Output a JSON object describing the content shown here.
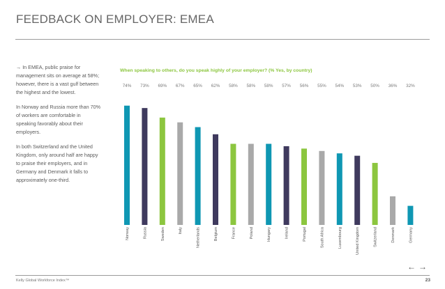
{
  "header": {
    "title": "FEEDBACK ON EMPLOYER: EMEA"
  },
  "sidebar": {
    "paragraphs": [
      "In EMEA, public praise for management sits on average at 58%; however, there is a vast gulf between the highest and the lowest.",
      "In Norway and Russia more than 70% of workers are comfortable in speaking favorably about their employers.",
      "In both Switzerland and the United Kingdom, only around half are happy to praise their employers, and in Germany and Denmark it falls to approximately one-third."
    ]
  },
  "footer": {
    "left": "Kelly Global Workforce Index™",
    "page": "23"
  },
  "nav": {
    "prev": "←",
    "next": "→"
  },
  "colors": {
    "teal": "#0f97b3",
    "navy": "#3f3a5e",
    "green": "#8cc63f",
    "grey": "#a9a9a9"
  },
  "chart_data": {
    "type": "bar",
    "title": "When speaking to others, do you speak highly of your employer? (% Yes, by country)",
    "categories": [
      "Norway",
      "Russia",
      "Sweden",
      "Italy",
      "Netherlands",
      "Belgium",
      "France",
      "Poland",
      "Hungary",
      "Ireland",
      "Portugal",
      "South Africa",
      "Luxembourg",
      "United Kingdom",
      "Switzerland",
      "Denmark",
      "Germany"
    ],
    "values": [
      74,
      73,
      69,
      67,
      65,
      62,
      58,
      58,
      58,
      57,
      56,
      55,
      54,
      53,
      50,
      36,
      32
    ],
    "value_labels": [
      "74%",
      "73%",
      "69%",
      "67%",
      "65%",
      "62%",
      "58%",
      "58%",
      "58%",
      "57%",
      "56%",
      "55%",
      "54%",
      "53%",
      "50%",
      "36%",
      "32%"
    ],
    "bar_colors": [
      "teal",
      "navy",
      "green",
      "grey",
      "teal",
      "navy",
      "green",
      "grey",
      "teal",
      "navy",
      "green",
      "grey",
      "teal",
      "navy",
      "green",
      "grey",
      "teal"
    ],
    "ylim": [
      24,
      78
    ],
    "xlabel": "",
    "ylabel": "",
    "grid": false,
    "legend": "none"
  }
}
